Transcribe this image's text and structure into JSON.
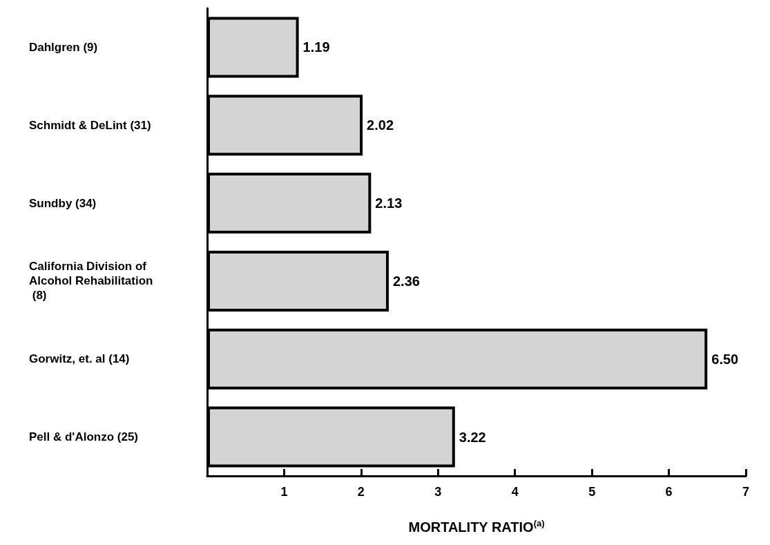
{
  "chart_data": {
    "type": "bar",
    "orientation": "horizontal",
    "xlabel": "MORTALITY RATIO$^{(a)}$",
    "categories": [
      "Dahlgren (9)",
      "Schmidt & DeLint (31)",
      "Sundby (34)",
      "California Division of Alcohol Rehabilitation (8)",
      "Gorwitz, et. al (14)",
      "Pell & d'Alonzo (25)"
    ],
    "values": [
      1.19,
      2.02,
      2.13,
      2.36,
      6.5,
      3.22
    ],
    "value_labels": [
      "1.19",
      "2.02",
      "2.13",
      "2.36",
      "6.50",
      "3.22"
    ],
    "color": "#d4d4d4",
    "xlim": [
      0,
      7
    ],
    "xticks": [
      1,
      2,
      3,
      4,
      5,
      6,
      7
    ],
    "grid": false
  }
}
